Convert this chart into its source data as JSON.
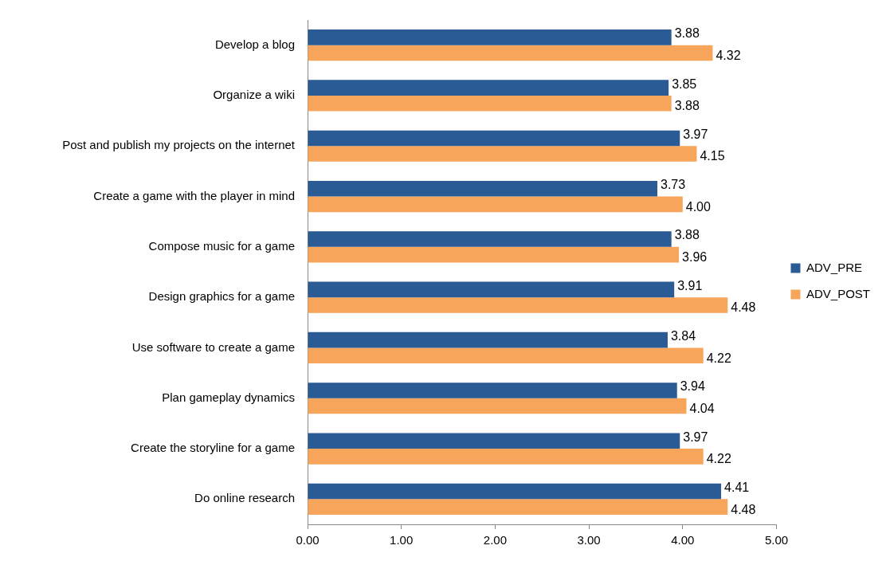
{
  "chart_data": {
    "type": "bar",
    "orientation": "horizontal",
    "categories": [
      "Develop a blog",
      "Organize a wiki",
      "Post and publish my projects on the internet",
      "Create a game with the player in mind",
      "Compose music for a game",
      "Design graphics for a game",
      "Use software to create a game",
      "Plan gameplay dynamics",
      "Create the storyline for a game",
      "Do online research"
    ],
    "series": [
      {
        "name": "ADV_PRE",
        "color": "#2a5b94",
        "values": [
          3.88,
          3.85,
          3.97,
          3.73,
          3.88,
          3.91,
          3.84,
          3.94,
          3.97,
          4.41
        ],
        "value_labels": [
          "3.88",
          "3.85",
          "3.97",
          "3.73",
          "3.88",
          "3.91",
          "3.84",
          "3.94",
          "3.97",
          "4.41"
        ]
      },
      {
        "name": "ADV_POST",
        "color": "#f6a55a",
        "values": [
          4.32,
          3.88,
          4.15,
          4.0,
          3.96,
          4.48,
          4.22,
          4.04,
          4.22,
          4.48
        ],
        "value_labels": [
          "4.32",
          "3.88",
          "4.15",
          "4.00",
          "3.96",
          "4.48",
          "4.22",
          "4.04",
          "4.22",
          "4.48"
        ]
      }
    ],
    "xlim": [
      0,
      5
    ],
    "xticks": [
      {
        "value": 0,
        "label": "0.00"
      },
      {
        "value": 1,
        "label": "1.00"
      },
      {
        "value": 2,
        "label": "2.00"
      },
      {
        "value": 3,
        "label": "3.00"
      },
      {
        "value": 4,
        "label": "4.00"
      },
      {
        "value": 5,
        "label": "5.00"
      }
    ],
    "grid": false,
    "legend": "right"
  }
}
